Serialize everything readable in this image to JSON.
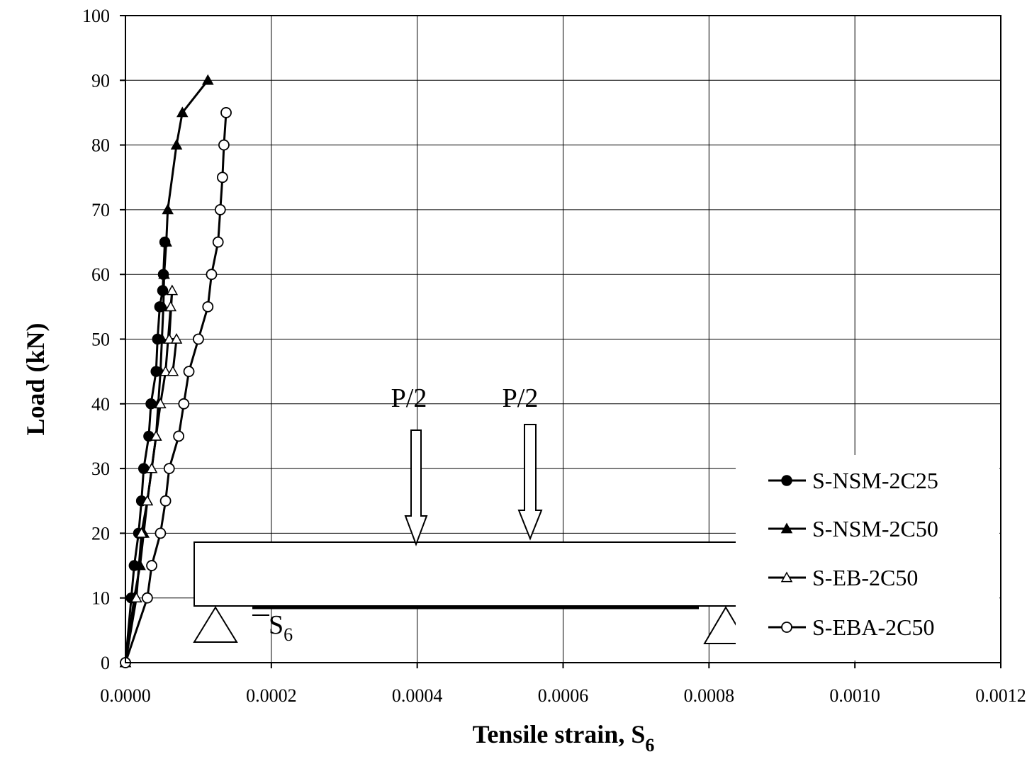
{
  "chart_data": {
    "type": "line",
    "xlabel": "Tensile strain, S",
    "xlabel_subscript": "6",
    "ylabel": "Load (kN)",
    "xlim": [
      0,
      0.0012
    ],
    "ylim": [
      0,
      100
    ],
    "xticks": [
      "0.0000",
      "0.0002",
      "0.0004",
      "0.0006",
      "0.0008",
      "0.0010",
      "0.0012"
    ],
    "yticks": [
      "0",
      "10",
      "20",
      "30",
      "40",
      "50",
      "60",
      "70",
      "80",
      "90",
      "100"
    ],
    "grid": true,
    "legend_position": "bottom-right",
    "series": [
      {
        "name": "S-NSM-2C25",
        "marker": "filled-circle",
        "x": [
          0.0,
          8e-06,
          1.2e-05,
          1.8e-05,
          2.2e-05,
          2.5e-05,
          3.2e-05,
          3.5e-05,
          4.2e-05,
          4.4e-05,
          4.7e-05,
          5.1e-05,
          5.2e-05,
          5.4e-05
        ],
        "y": [
          0,
          10,
          15,
          20,
          25,
          30,
          35,
          40,
          45,
          50,
          55,
          57.5,
          60,
          65
        ]
      },
      {
        "name": "S-NSM-2C50",
        "marker": "filled-triangle",
        "x": [
          0.0,
          1.2e-05,
          2e-05,
          2.5e-05,
          3e-05,
          3.6e-05,
          4.2e-05,
          4.5e-05,
          4.8e-05,
          5e-05,
          5.2e-05,
          5.3e-05,
          5.6e-05,
          5.8e-05,
          7e-05,
          7.8e-05,
          0.000113
        ],
        "y": [
          0,
          10,
          15,
          20,
          25,
          30,
          35,
          40,
          45,
          50,
          55,
          60,
          65,
          70,
          80,
          85,
          90
        ]
      },
      {
        "name": "S-EB-2C50",
        "marker": "open-triangle",
        "x": [
          0.0,
          1.5e-05,
          2.2e-05,
          3e-05,
          3.6e-05,
          4.2e-05,
          4.8e-05,
          5.5e-05,
          6.2e-05,
          6.4e-05,
          6e-05,
          7e-05,
          6.5e-05
        ],
        "y": [
          0,
          10,
          20,
          25,
          30,
          35,
          40,
          45,
          55,
          57.5,
          50,
          50,
          45
        ]
      },
      {
        "name": "S-EBA-2C50",
        "marker": "open-circle",
        "x": [
          0.0,
          3e-05,
          3.6e-05,
          4.8e-05,
          5.5e-05,
          6e-05,
          7.3e-05,
          8e-05,
          8.7e-05,
          0.0001,
          0.000113,
          0.000118,
          0.000127,
          0.00013,
          0.000133,
          0.000135,
          0.000138
        ],
        "y": [
          0,
          10,
          15,
          20,
          25,
          30,
          35,
          40,
          45,
          50,
          55,
          60,
          65,
          70,
          75,
          80,
          85
        ]
      }
    ],
    "inset_diagram": {
      "load_labels": [
        "P/2",
        "P/2"
      ],
      "gauge_label": "S",
      "gauge_subscript": "6"
    }
  }
}
